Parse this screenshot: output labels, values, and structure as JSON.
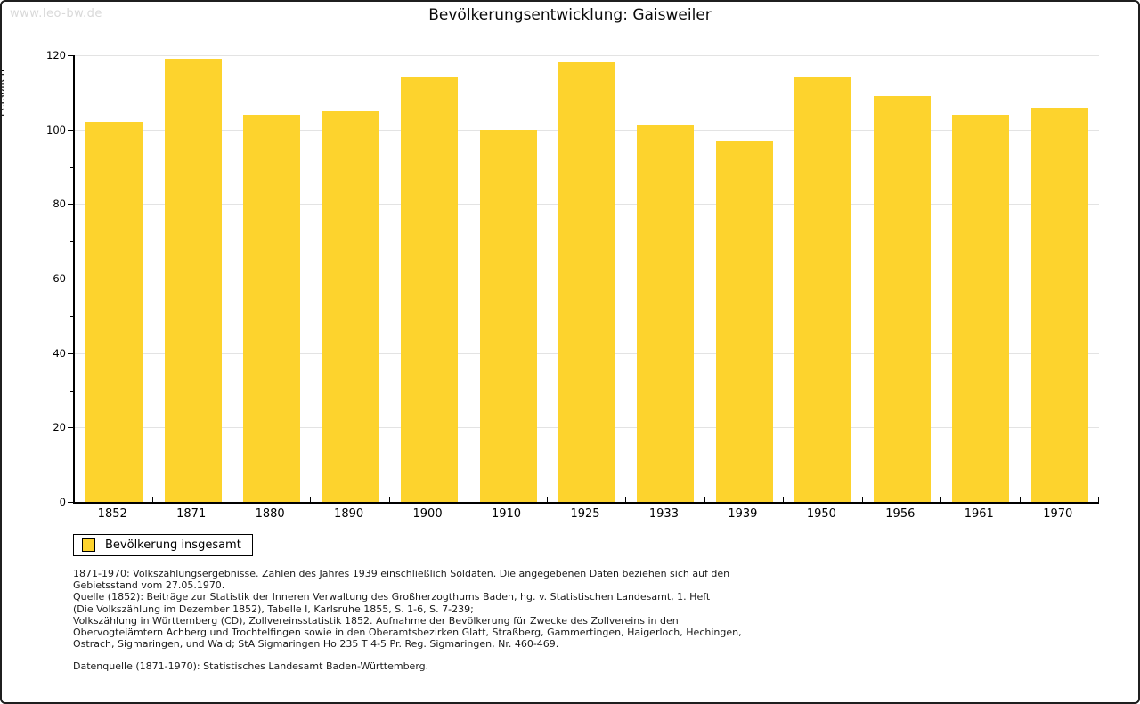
{
  "page": {
    "watermark": "www.leo-bw.de",
    "title": "Bevölkerungsentwicklung: Gaisweiler"
  },
  "chart_data": {
    "type": "bar",
    "title": "Bevölkerungsentwicklung: Gaisweiler",
    "xlabel": "",
    "ylabel": "Personen",
    "categories": [
      "1852",
      "1871",
      "1880",
      "1890",
      "1900",
      "1910",
      "1925",
      "1933",
      "1939",
      "1950",
      "1956",
      "1961",
      "1970"
    ],
    "series": [
      {
        "name": "Bevölkerung insgesamt",
        "values": [
          102,
          119,
          104,
          105,
          114,
          100,
          118,
          101,
          97,
          114,
          109,
          104,
          106
        ]
      }
    ],
    "ylim": [
      0,
      120
    ],
    "yticks": [
      0,
      20,
      40,
      60,
      80,
      100,
      120
    ],
    "ytick_minor_step": 10,
    "grid": true,
    "bar_color": "#FDD32D",
    "gridline_color": "#e3e3e3",
    "legend_position": "bottom-left"
  },
  "footnotes": {
    "lines": [
      "1871-1970: Volkszählungsergebnisse. Zahlen des Jahres 1939 einschließlich Soldaten. Die angegebenen Daten beziehen sich auf den",
      "Gebietsstand vom 27.05.1970.",
      "Quelle (1852): Beiträge zur Statistik der Inneren Verwaltung des Großherzogthums Baden, hg. v. Statistischen Landesamt, 1. Heft",
      "(Die Volkszählung im Dezember 1852), Tabelle I, Karlsruhe 1855, S. 1-6, S. 7-239;",
      "Volkszählung in Württemberg (CD), Zollvereinsstatistik 1852. Aufnahme der Bevölkerung für Zwecke des Zollvereins in den",
      "Obervogteiämtern Achberg und Trochtelfingen sowie in den Oberamtsbezirken Glatt, Straßberg, Gammertingen, Haigerloch, Hechingen,",
      "Ostrach, Sigmaringen, und Wald; StA Sigmaringen Ho 235 T 4-5 Pr. Reg. Sigmaringen, Nr. 460-469."
    ],
    "datasource": "Datenquelle (1871-1970): Statistisches Landesamt Baden-Württemberg."
  }
}
